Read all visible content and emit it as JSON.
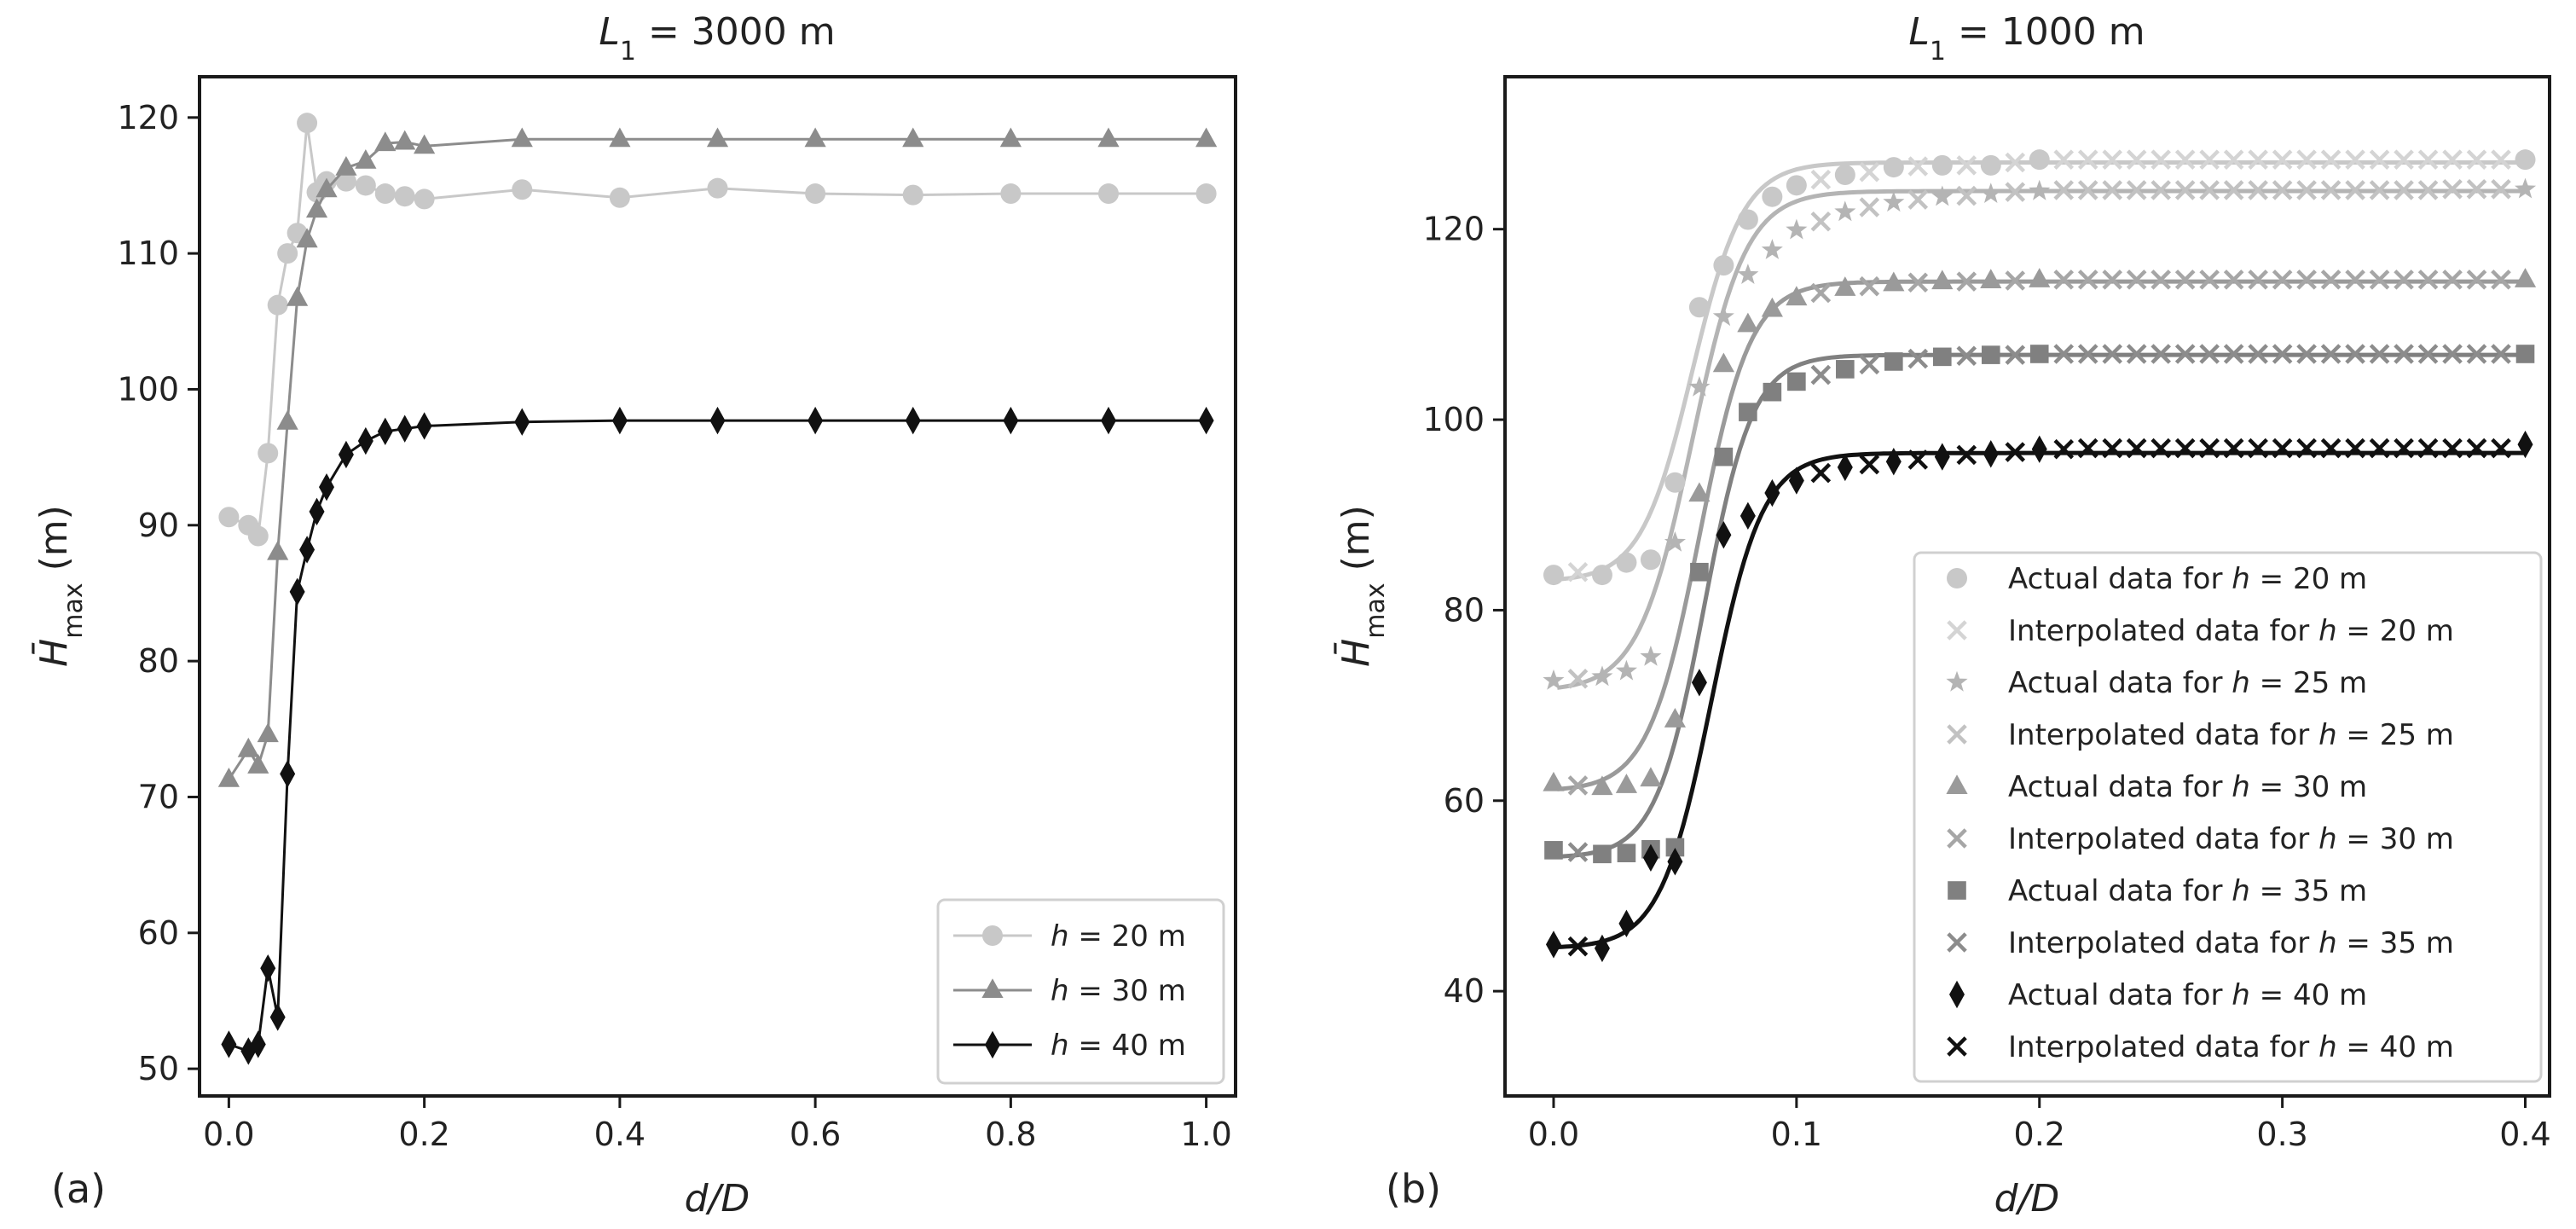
{
  "figure_panels": [
    {
      "letter": "(a)",
      "title_var": "L",
      "title_sub": "1",
      "title_rest": " = 3000 m"
    },
    {
      "letter": "(b)",
      "title_var": "L",
      "title_sub": "1",
      "title_rest": " = 1000 m"
    }
  ],
  "chart_data": [
    {
      "type": "line",
      "panel": "(a)",
      "title": "L1 = 3000 m",
      "xlabel": "d/D",
      "ylabel": "H̄max (m)",
      "xlim": [
        -0.03,
        1.03
      ],
      "ylim": [
        48,
        123
      ],
      "xticks": [
        0.0,
        0.2,
        0.4,
        0.6,
        0.8,
        1.0
      ],
      "xtick_labels": [
        "0.0",
        "0.2",
        "0.4",
        "0.6",
        "0.8",
        "1.0"
      ],
      "yticks": [
        50,
        60,
        70,
        80,
        90,
        100,
        110,
        120
      ],
      "ytick_labels": [
        "50",
        "60",
        "70",
        "80",
        "90",
        "100",
        "110",
        "120"
      ],
      "legend_position": "bottom-right",
      "series": [
        {
          "name": "h = 20 m",
          "color": "#c8c8c8",
          "marker": "circle",
          "x": [
            0.0,
            0.02,
            0.03,
            0.04,
            0.05,
            0.06,
            0.07,
            0.08,
            0.09,
            0.1,
            0.12,
            0.14,
            0.16,
            0.18,
            0.2,
            0.3,
            0.4,
            0.5,
            0.6,
            0.7,
            0.8,
            0.9,
            1.0
          ],
          "y": [
            90.6,
            90.0,
            89.2,
            95.3,
            106.2,
            110.0,
            111.5,
            119.6,
            114.5,
            115.3,
            115.3,
            115.0,
            114.4,
            114.2,
            114.0,
            114.7,
            114.1,
            114.8,
            114.4,
            114.3,
            114.4,
            114.4,
            114.4
          ]
        },
        {
          "name": "h = 30 m",
          "color": "#8c8c8c",
          "marker": "triangle",
          "x": [
            0.0,
            0.02,
            0.03,
            0.04,
            0.05,
            0.06,
            0.07,
            0.08,
            0.09,
            0.1,
            0.12,
            0.14,
            0.16,
            0.18,
            0.2,
            0.3,
            0.4,
            0.5,
            0.6,
            0.7,
            0.8,
            0.9,
            1.0
          ],
          "y": [
            71.3,
            73.5,
            72.3,
            74.6,
            88.0,
            97.6,
            106.7,
            111.0,
            113.2,
            114.7,
            116.3,
            116.8,
            118.1,
            118.2,
            117.9,
            118.4,
            118.4,
            118.4,
            118.4,
            118.4,
            118.4,
            118.4,
            118.4
          ]
        },
        {
          "name": "h = 40 m",
          "color": "#111111",
          "marker": "diamond",
          "x": [
            0.0,
            0.02,
            0.03,
            0.04,
            0.05,
            0.06,
            0.07,
            0.08,
            0.09,
            0.1,
            0.12,
            0.14,
            0.16,
            0.18,
            0.2,
            0.3,
            0.4,
            0.5,
            0.6,
            0.7,
            0.8,
            0.9,
            1.0
          ],
          "y": [
            51.8,
            51.3,
            51.8,
            57.4,
            53.8,
            71.7,
            85.1,
            88.2,
            91.0,
            92.8,
            95.2,
            96.2,
            96.9,
            97.1,
            97.3,
            97.6,
            97.7,
            97.7,
            97.7,
            97.7,
            97.7,
            97.7,
            97.7
          ]
        }
      ]
    },
    {
      "type": "scatter",
      "panel": "(b)",
      "title": "L1 = 1000 m",
      "xlabel": "d/D",
      "ylabel": "H̄max (m)",
      "xlim": [
        -0.02,
        0.41
      ],
      "ylim": [
        29,
        136
      ],
      "xticks": [
        0.0,
        0.1,
        0.2,
        0.3,
        0.4
      ],
      "xtick_labels": [
        "0.0",
        "0.1",
        "0.2",
        "0.3",
        "0.4"
      ],
      "yticks": [
        40,
        60,
        80,
        100,
        120
      ],
      "ytick_labels": [
        "40",
        "60",
        "80",
        "100",
        "120"
      ],
      "legend_position": "bottom-right",
      "fit_curves": [
        {
          "name": "fit for h = 20 m",
          "color": "#c8c8c8",
          "low": 83.0,
          "high": 127.0,
          "x0": 0.057,
          "k": 95
        },
        {
          "name": "fit for h = 25 m",
          "color": "#b4b4b4",
          "low": 71.5,
          "high": 124.0,
          "x0": 0.057,
          "k": 90
        },
        {
          "name": "fit for h = 30 m",
          "color": "#9a9a9a",
          "low": 61.0,
          "high": 114.5,
          "x0": 0.06,
          "k": 95
        },
        {
          "name": "fit for h = 35 m",
          "color": "#808080",
          "low": 54.0,
          "high": 106.8,
          "x0": 0.062,
          "k": 100
        },
        {
          "name": "fit for h = 40 m",
          "color": "#111111",
          "low": 44.5,
          "high": 96.5,
          "x0": 0.065,
          "k": 95
        }
      ],
      "series": [
        {
          "name": "Actual data for h = 20 m",
          "color": "#c8c8c8",
          "marker": "circle",
          "x": [
            0.0,
            0.02,
            0.03,
            0.04,
            0.05,
            0.06,
            0.07,
            0.08,
            0.09,
            0.1,
            0.12,
            0.14,
            0.16,
            0.18,
            0.2,
            0.4
          ],
          "y": [
            83.7,
            83.7,
            85.0,
            85.3,
            93.4,
            111.8,
            116.2,
            121.0,
            123.4,
            124.6,
            125.7,
            126.5,
            126.7,
            126.7,
            127.3,
            127.3
          ]
        },
        {
          "name": "Interpolated data for h = 20 m",
          "color": "#d4d4d4",
          "marker": "x",
          "x": [
            0.01,
            0.11,
            0.13,
            0.15,
            0.17,
            0.19,
            0.21,
            0.22,
            0.23,
            0.24,
            0.25,
            0.26,
            0.27,
            0.28,
            0.29,
            0.3,
            0.31,
            0.32,
            0.33,
            0.34,
            0.35,
            0.36,
            0.37,
            0.38,
            0.39
          ],
          "y": [
            84.0,
            125.2,
            126.0,
            126.6,
            126.7,
            127.0,
            127.3,
            127.3,
            127.3,
            127.3,
            127.3,
            127.3,
            127.3,
            127.3,
            127.3,
            127.3,
            127.3,
            127.3,
            127.3,
            127.3,
            127.3,
            127.3,
            127.3,
            127.3,
            127.3
          ]
        },
        {
          "name": "Actual data for h = 25 m",
          "color": "#b4b4b4",
          "marker": "star",
          "x": [
            0.0,
            0.02,
            0.03,
            0.04,
            0.05,
            0.06,
            0.07,
            0.08,
            0.09,
            0.1,
            0.12,
            0.14,
            0.16,
            0.18,
            0.2,
            0.4
          ],
          "y": [
            72.6,
            73.0,
            73.6,
            75.1,
            87.1,
            103.4,
            110.8,
            115.2,
            117.8,
            119.9,
            121.8,
            122.8,
            123.4,
            123.7,
            124.0,
            124.2
          ]
        },
        {
          "name": "Interpolated data for h = 25 m",
          "color": "#c2c2c2",
          "marker": "x",
          "x": [
            0.01,
            0.11,
            0.13,
            0.15,
            0.17,
            0.19,
            0.21,
            0.22,
            0.23,
            0.24,
            0.25,
            0.26,
            0.27,
            0.28,
            0.29,
            0.3,
            0.31,
            0.32,
            0.33,
            0.34,
            0.35,
            0.36,
            0.37,
            0.38,
            0.39
          ],
          "y": [
            72.8,
            120.8,
            122.3,
            123.1,
            123.5,
            123.9,
            124.1,
            124.1,
            124.1,
            124.1,
            124.1,
            124.1,
            124.1,
            124.1,
            124.1,
            124.1,
            124.1,
            124.1,
            124.1,
            124.1,
            124.1,
            124.1,
            124.2,
            124.2,
            124.2
          ]
        },
        {
          "name": "Actual data for h = 30 m",
          "color": "#9a9a9a",
          "marker": "triangle",
          "x": [
            0.0,
            0.02,
            0.03,
            0.04,
            0.05,
            0.06,
            0.07,
            0.08,
            0.09,
            0.1,
            0.12,
            0.14,
            0.16,
            0.18,
            0.2,
            0.4
          ],
          "y": [
            61.8,
            61.4,
            61.6,
            62.3,
            68.5,
            92.2,
            105.8,
            110.0,
            111.6,
            112.8,
            113.8,
            114.3,
            114.5,
            114.6,
            114.7,
            114.7
          ]
        },
        {
          "name": "Interpolated data for h = 30 m",
          "color": "#a6a6a6",
          "marker": "x",
          "x": [
            0.01,
            0.11,
            0.13,
            0.15,
            0.17,
            0.19,
            0.21,
            0.22,
            0.23,
            0.24,
            0.25,
            0.26,
            0.27,
            0.28,
            0.29,
            0.3,
            0.31,
            0.32,
            0.33,
            0.34,
            0.35,
            0.36,
            0.37,
            0.38,
            0.39
          ],
          "y": [
            61.6,
            113.3,
            114.0,
            114.4,
            114.5,
            114.6,
            114.7,
            114.7,
            114.7,
            114.7,
            114.7,
            114.7,
            114.7,
            114.7,
            114.7,
            114.7,
            114.7,
            114.7,
            114.7,
            114.7,
            114.7,
            114.7,
            114.7,
            114.7,
            114.7
          ]
        },
        {
          "name": "Actual data for h = 35 m",
          "color": "#808080",
          "marker": "square",
          "x": [
            0.0,
            0.02,
            0.03,
            0.04,
            0.05,
            0.06,
            0.07,
            0.08,
            0.09,
            0.1,
            0.12,
            0.14,
            0.16,
            0.18,
            0.2,
            0.4
          ],
          "y": [
            54.8,
            54.4,
            54.5,
            54.9,
            55.1,
            84.0,
            96.1,
            100.8,
            102.9,
            104.0,
            105.3,
            106.1,
            106.6,
            106.8,
            106.9,
            106.9
          ]
        },
        {
          "name": "Interpolated data for h = 35 m",
          "color": "#8c8c8c",
          "marker": "x",
          "x": [
            0.01,
            0.11,
            0.13,
            0.15,
            0.17,
            0.19,
            0.21,
            0.22,
            0.23,
            0.24,
            0.25,
            0.26,
            0.27,
            0.28,
            0.29,
            0.3,
            0.31,
            0.32,
            0.33,
            0.34,
            0.35,
            0.36,
            0.37,
            0.38,
            0.39
          ],
          "y": [
            54.6,
            104.7,
            105.8,
            106.4,
            106.7,
            106.8,
            106.9,
            106.9,
            106.9,
            106.9,
            106.9,
            106.9,
            106.9,
            106.9,
            106.9,
            106.9,
            106.9,
            106.9,
            106.9,
            106.9,
            106.9,
            106.9,
            106.9,
            106.9,
            106.9
          ]
        },
        {
          "name": "Actual data for h = 40 m",
          "color": "#111111",
          "marker": "diamond",
          "x": [
            0.0,
            0.02,
            0.03,
            0.04,
            0.05,
            0.06,
            0.07,
            0.08,
            0.09,
            0.1,
            0.12,
            0.14,
            0.16,
            0.18,
            0.2,
            0.4
          ],
          "y": [
            44.9,
            44.5,
            47.1,
            54.0,
            53.6,
            72.4,
            87.9,
            89.9,
            92.3,
            93.6,
            95.0,
            95.6,
            96.1,
            96.4,
            96.9,
            97.4
          ]
        },
        {
          "name": "Interpolated data for h = 40 m",
          "color": "#111111",
          "marker": "x",
          "x": [
            0.01,
            0.11,
            0.13,
            0.15,
            0.17,
            0.19,
            0.21,
            0.22,
            0.23,
            0.24,
            0.25,
            0.26,
            0.27,
            0.28,
            0.29,
            0.3,
            0.31,
            0.32,
            0.33,
            0.34,
            0.35,
            0.36,
            0.37,
            0.38,
            0.39
          ],
          "y": [
            44.7,
            94.4,
            95.3,
            95.8,
            96.3,
            96.6,
            96.9,
            97.0,
            97.0,
            97.0,
            97.0,
            97.0,
            97.0,
            97.0,
            97.0,
            97.0,
            97.0,
            97.0,
            97.0,
            97.0,
            97.0,
            97.0,
            97.0,
            97.0,
            97.0
          ]
        }
      ]
    }
  ]
}
